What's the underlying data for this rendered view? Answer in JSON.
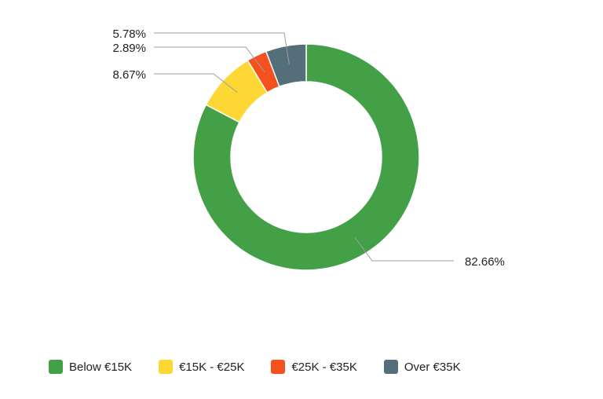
{
  "chart_data": {
    "type": "pie",
    "variant": "donut",
    "title": "",
    "legend_position": "bottom",
    "series": [
      {
        "name": "Below €15K",
        "value": 82.66,
        "label": "82.66%",
        "color": "#43A047"
      },
      {
        "name": "€15K - €25K",
        "value": 8.67,
        "label": "8.67%",
        "color": "#FDD835"
      },
      {
        "name": "€25K - €35K",
        "value": 2.89,
        "label": "2.89%",
        "color": "#F4511E"
      },
      {
        "name": "Over €35K",
        "value": 5.78,
        "label": "5.78%",
        "color": "#546E7A"
      }
    ]
  }
}
